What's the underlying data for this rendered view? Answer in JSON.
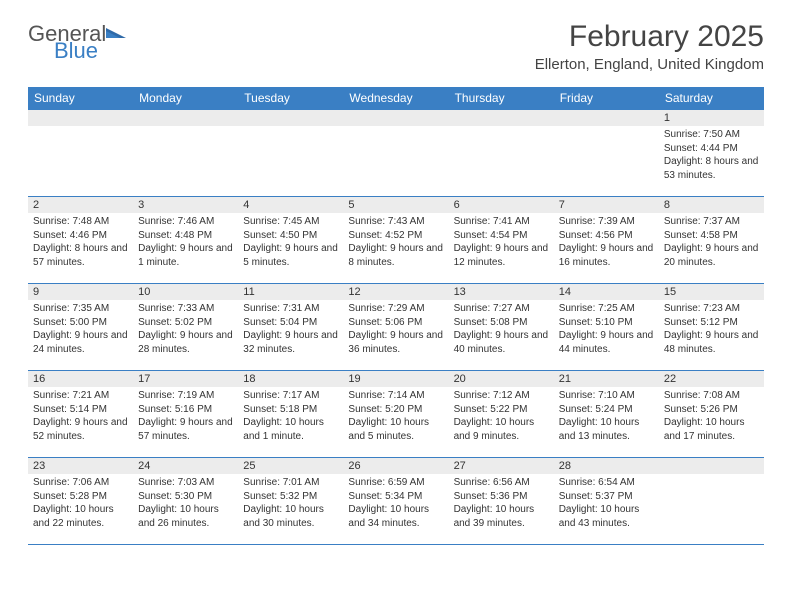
{
  "logo": {
    "text1": "General",
    "text2": "Blue"
  },
  "title": "February 2025",
  "location": "Ellerton, England, United Kingdom",
  "colors": {
    "header_bg": "#3a7fc4",
    "header_text": "#ffffff",
    "daynum_bg": "#ececec",
    "border": "#3a7fc4",
    "body_text": "#333333",
    "page_bg": "#ffffff"
  },
  "dayNames": [
    "Sunday",
    "Monday",
    "Tuesday",
    "Wednesday",
    "Thursday",
    "Friday",
    "Saturday"
  ],
  "weeks": [
    [
      {
        "n": "",
        "lines": []
      },
      {
        "n": "",
        "lines": []
      },
      {
        "n": "",
        "lines": []
      },
      {
        "n": "",
        "lines": []
      },
      {
        "n": "",
        "lines": []
      },
      {
        "n": "",
        "lines": []
      },
      {
        "n": "1",
        "lines": [
          "Sunrise: 7:50 AM",
          "Sunset: 4:44 PM",
          "Daylight: 8 hours and 53 minutes."
        ]
      }
    ],
    [
      {
        "n": "2",
        "lines": [
          "Sunrise: 7:48 AM",
          "Sunset: 4:46 PM",
          "Daylight: 8 hours and 57 minutes."
        ]
      },
      {
        "n": "3",
        "lines": [
          "Sunrise: 7:46 AM",
          "Sunset: 4:48 PM",
          "Daylight: 9 hours and 1 minute."
        ]
      },
      {
        "n": "4",
        "lines": [
          "Sunrise: 7:45 AM",
          "Sunset: 4:50 PM",
          "Daylight: 9 hours and 5 minutes."
        ]
      },
      {
        "n": "5",
        "lines": [
          "Sunrise: 7:43 AM",
          "Sunset: 4:52 PM",
          "Daylight: 9 hours and 8 minutes."
        ]
      },
      {
        "n": "6",
        "lines": [
          "Sunrise: 7:41 AM",
          "Sunset: 4:54 PM",
          "Daylight: 9 hours and 12 minutes."
        ]
      },
      {
        "n": "7",
        "lines": [
          "Sunrise: 7:39 AM",
          "Sunset: 4:56 PM",
          "Daylight: 9 hours and 16 minutes."
        ]
      },
      {
        "n": "8",
        "lines": [
          "Sunrise: 7:37 AM",
          "Sunset: 4:58 PM",
          "Daylight: 9 hours and 20 minutes."
        ]
      }
    ],
    [
      {
        "n": "9",
        "lines": [
          "Sunrise: 7:35 AM",
          "Sunset: 5:00 PM",
          "Daylight: 9 hours and 24 minutes."
        ]
      },
      {
        "n": "10",
        "lines": [
          "Sunrise: 7:33 AM",
          "Sunset: 5:02 PM",
          "Daylight: 9 hours and 28 minutes."
        ]
      },
      {
        "n": "11",
        "lines": [
          "Sunrise: 7:31 AM",
          "Sunset: 5:04 PM",
          "Daylight: 9 hours and 32 minutes."
        ]
      },
      {
        "n": "12",
        "lines": [
          "Sunrise: 7:29 AM",
          "Sunset: 5:06 PM",
          "Daylight: 9 hours and 36 minutes."
        ]
      },
      {
        "n": "13",
        "lines": [
          "Sunrise: 7:27 AM",
          "Sunset: 5:08 PM",
          "Daylight: 9 hours and 40 minutes."
        ]
      },
      {
        "n": "14",
        "lines": [
          "Sunrise: 7:25 AM",
          "Sunset: 5:10 PM",
          "Daylight: 9 hours and 44 minutes."
        ]
      },
      {
        "n": "15",
        "lines": [
          "Sunrise: 7:23 AM",
          "Sunset: 5:12 PM",
          "Daylight: 9 hours and 48 minutes."
        ]
      }
    ],
    [
      {
        "n": "16",
        "lines": [
          "Sunrise: 7:21 AM",
          "Sunset: 5:14 PM",
          "Daylight: 9 hours and 52 minutes."
        ]
      },
      {
        "n": "17",
        "lines": [
          "Sunrise: 7:19 AM",
          "Sunset: 5:16 PM",
          "Daylight: 9 hours and 57 minutes."
        ]
      },
      {
        "n": "18",
        "lines": [
          "Sunrise: 7:17 AM",
          "Sunset: 5:18 PM",
          "Daylight: 10 hours and 1 minute."
        ]
      },
      {
        "n": "19",
        "lines": [
          "Sunrise: 7:14 AM",
          "Sunset: 5:20 PM",
          "Daylight: 10 hours and 5 minutes."
        ]
      },
      {
        "n": "20",
        "lines": [
          "Sunrise: 7:12 AM",
          "Sunset: 5:22 PM",
          "Daylight: 10 hours and 9 minutes."
        ]
      },
      {
        "n": "21",
        "lines": [
          "Sunrise: 7:10 AM",
          "Sunset: 5:24 PM",
          "Daylight: 10 hours and 13 minutes."
        ]
      },
      {
        "n": "22",
        "lines": [
          "Sunrise: 7:08 AM",
          "Sunset: 5:26 PM",
          "Daylight: 10 hours and 17 minutes."
        ]
      }
    ],
    [
      {
        "n": "23",
        "lines": [
          "Sunrise: 7:06 AM",
          "Sunset: 5:28 PM",
          "Daylight: 10 hours and 22 minutes."
        ]
      },
      {
        "n": "24",
        "lines": [
          "Sunrise: 7:03 AM",
          "Sunset: 5:30 PM",
          "Daylight: 10 hours and 26 minutes."
        ]
      },
      {
        "n": "25",
        "lines": [
          "Sunrise: 7:01 AM",
          "Sunset: 5:32 PM",
          "Daylight: 10 hours and 30 minutes."
        ]
      },
      {
        "n": "26",
        "lines": [
          "Sunrise: 6:59 AM",
          "Sunset: 5:34 PM",
          "Daylight: 10 hours and 34 minutes."
        ]
      },
      {
        "n": "27",
        "lines": [
          "Sunrise: 6:56 AM",
          "Sunset: 5:36 PM",
          "Daylight: 10 hours and 39 minutes."
        ]
      },
      {
        "n": "28",
        "lines": [
          "Sunrise: 6:54 AM",
          "Sunset: 5:37 PM",
          "Daylight: 10 hours and 43 minutes."
        ]
      },
      {
        "n": "",
        "lines": []
      }
    ]
  ]
}
